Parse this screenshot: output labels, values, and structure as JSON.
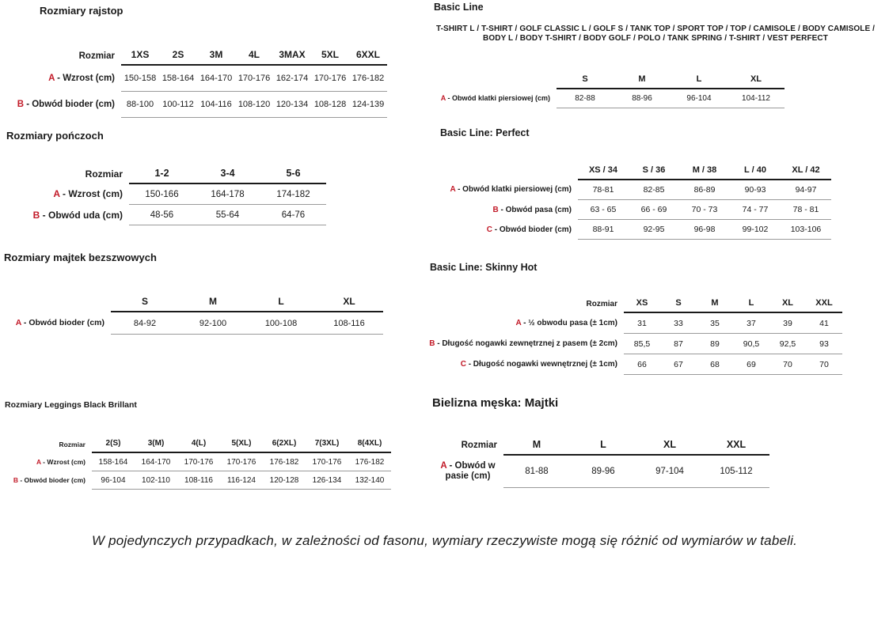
{
  "colors": {
    "accent_red": "#c21a28",
    "text": "#1a1a1a",
    "rule_heavy": "#1a1a1a",
    "rule_light": "#9a9a9a"
  },
  "footnote": "W pojedynczych przypadkach, w zależności od fasonu, wymiary rzeczywiste mogą się różnić od wymiarów w tabeli.",
  "tables": [
    {
      "id": "rozmiary-rajstop",
      "title": "Rozmiary rajstop",
      "header_label": "Rozmiar",
      "columns": [
        "1XS",
        "2S",
        "3M",
        "4L",
        "3MAX",
        "5XL",
        "6XXL"
      ],
      "rows": [
        {
          "letter": "A",
          "label": "- Wzrost (cm)",
          "values": [
            "150-158",
            "158-164",
            "164-170",
            "170-176",
            "162-174",
            "170-176",
            "176-182"
          ]
        },
        {
          "letter": "B",
          "label": "- Obwód bioder (cm)",
          "values": [
            "88-100",
            "100-112",
            "104-116",
            "108-120",
            "120-134",
            "108-128",
            "124-139"
          ]
        }
      ]
    },
    {
      "id": "rozmiary-ponczoch",
      "title": "Rozmiary pończoch",
      "header_label": "Rozmiar",
      "columns": [
        "1-2",
        "3-4",
        "5-6"
      ],
      "rows": [
        {
          "letter": "A",
          "label": "- Wzrost (cm)",
          "values": [
            "150-166",
            "164-178",
            "174-182"
          ]
        },
        {
          "letter": "B",
          "label": "- Obwód uda (cm)",
          "values": [
            "48-56",
            "55-64",
            "64-76"
          ]
        }
      ]
    },
    {
      "id": "rozmiary-majtek-bezszwowych",
      "title": "Rozmiary majtek bezszwowych",
      "header_label": "",
      "columns": [
        "S",
        "M",
        "L",
        "XL"
      ],
      "rows": [
        {
          "letter": "A",
          "label": "- Obwód bioder (cm)",
          "values": [
            "84-92",
            "92-100",
            "100-108",
            "108-116"
          ]
        }
      ]
    },
    {
      "id": "rozmiary-leggings-black-brillant",
      "title": "Rozmiary Leggings Black Brillant",
      "header_label": "Rozmiar",
      "columns": [
        "2(S)",
        "3(M)",
        "4(L)",
        "5(XL)",
        "6(2XL)",
        "7(3XL)",
        "8(4XL)"
      ],
      "rows": [
        {
          "letter": "A",
          "label": "- Wzrost (cm)",
          "values": [
            "158-164",
            "164-170",
            "170-176",
            "170-176",
            "176-182",
            "170-176",
            "176-182"
          ]
        },
        {
          "letter": "B",
          "label": "- Obwód bioder (cm)",
          "values": [
            "96-104",
            "102-110",
            "108-116",
            "116-124",
            "120-128",
            "126-134",
            "132-140"
          ]
        }
      ]
    },
    {
      "id": "basic-line",
      "title": "Basic Line",
      "description": "T-SHIRT L / T-SHIRT / GOLF CLASSIC L / GOLF S / TANK TOP / SPORT TOP / TOP / CAMISOLE / BODY CAMISOLE / BODY L / BODY T-SHIRT / BODY GOLF / POLO / TANK SPRING / T-SHIRT / VEST PERFECT",
      "header_label": "",
      "columns": [
        "S",
        "M",
        "L",
        "XL"
      ],
      "rows": [
        {
          "letter": "A",
          "label": "- Obwód klatki piersiowej (cm)",
          "values": [
            "82-88",
            "88-96",
            "96-104",
            "104-112"
          ]
        }
      ]
    },
    {
      "id": "basic-line-perfect",
      "title": "Basic Line: Perfect",
      "header_label": "",
      "columns": [
        "XS / 34",
        "S / 36",
        "M / 38",
        "L / 40",
        "XL / 42"
      ],
      "rows": [
        {
          "letter": "A",
          "label": "- Obwód klatki piersiowej (cm)",
          "values": [
            "78-81",
            "82-85",
            "86-89",
            "90-93",
            "94-97"
          ]
        },
        {
          "letter": "B",
          "label": "- Obwód pasa (cm)",
          "values": [
            "63 - 65",
            "66 - 69",
            "70 - 73",
            "74 - 77",
            "78 - 81"
          ]
        },
        {
          "letter": "C",
          "label": "- Obwód bioder (cm)",
          "values": [
            "88-91",
            "92-95",
            "96-98",
            "99-102",
            "103-106"
          ]
        }
      ]
    },
    {
      "id": "basic-line-skinny-hot",
      "title": "Basic Line: Skinny Hot",
      "header_label": "Rozmiar",
      "columns": [
        "XS",
        "S",
        "M",
        "L",
        "XL",
        "XXL"
      ],
      "rows": [
        {
          "letter": "A",
          "label": "- ½ obwodu pasa (± 1cm)",
          "values": [
            "31",
            "33",
            "35",
            "37",
            "39",
            "41"
          ]
        },
        {
          "letter": "B",
          "label": "- Długość nogawki zewnętrznej z pasem (± 2cm)",
          "values": [
            "85,5",
            "87",
            "89",
            "90,5",
            "92,5",
            "93"
          ]
        },
        {
          "letter": "C",
          "label": "- Długość nogawki wewnętrznej (± 1cm)",
          "values": [
            "66",
            "67",
            "68",
            "69",
            "70",
            "70"
          ]
        }
      ]
    },
    {
      "id": "bielizna-meska-majtki",
      "title": "Bielizna męska: Majtki",
      "header_label": "Rozmiar",
      "columns": [
        "M",
        "L",
        "XL",
        "XXL"
      ],
      "rows": [
        {
          "letter": "A",
          "label": "- Obwód w pasie (cm)",
          "values": [
            "81-88",
            "89-96",
            "97-104",
            "105-112"
          ]
        }
      ]
    }
  ]
}
